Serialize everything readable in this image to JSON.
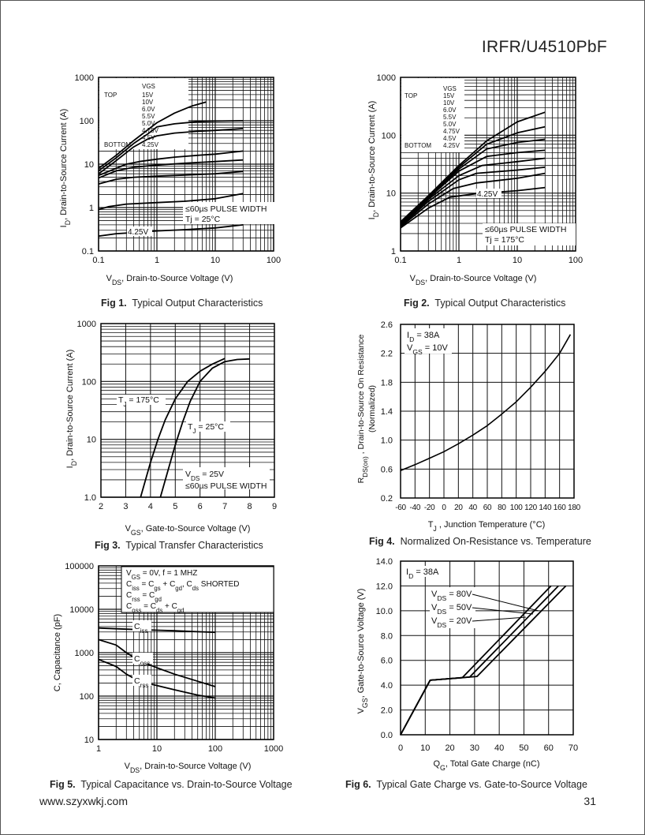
{
  "header": {
    "part_number": "IRFR/U4510PbF"
  },
  "footer": {
    "website": "www.szyxwkj.com",
    "page_number": "31"
  },
  "chart_data": [
    {
      "id": "fig1",
      "type": "line",
      "caption_num": "Fig 1.",
      "caption_text": "Typical Output Characteristics",
      "xscale": "log",
      "yscale": "log",
      "xlim": [
        0.1,
        100
      ],
      "ylim": [
        0.1,
        1000
      ],
      "xticks": [
        0.1,
        1,
        10,
        100
      ],
      "yticks": [
        0.1,
        1,
        10,
        100,
        1000
      ],
      "xtick_labels": [
        "0.1",
        "1",
        "10",
        "100"
      ],
      "ytick_labels": [
        "0.1",
        "1",
        "10",
        "100",
        "1000"
      ],
      "ylabel_main": "I",
      "ylabel_sub": "D",
      "ylabel_rest": ", Drain-to-Source Current (A)",
      "xlabel_main": "V",
      "xlabel_sub": "DS",
      "xlabel_rest": ", Drain-to-Source Voltage (V)",
      "legend": {
        "header": "VGS",
        "top": "TOP",
        "bottom": "BOTTOM",
        "entries": [
          "15V",
          "10V",
          "6.0V",
          "5.5V",
          "5.0V",
          "4.75V",
          "4.5V",
          "4.25V"
        ]
      },
      "annotations": [
        "≤60µs PULSE WIDTH",
        "Tj = 25°C",
        "4.25V"
      ],
      "series": [
        {
          "name": "15V",
          "x": [
            0.1,
            0.2,
            0.4,
            0.7,
            1,
            2,
            4,
            7
          ],
          "y": [
            8,
            16,
            35,
            62,
            90,
            150,
            220,
            270
          ]
        },
        {
          "name": "10V",
          "x": [
            0.1,
            0.2,
            0.4,
            0.7,
            1,
            2,
            5,
            10,
            30
          ],
          "y": [
            7,
            14,
            30,
            50,
            72,
            85,
            95,
            98,
            100
          ]
        },
        {
          "name": "6.0V",
          "x": [
            0.1,
            0.2,
            0.4,
            0.7,
            1,
            2,
            5,
            10,
            30
          ],
          "y": [
            6,
            12,
            25,
            38,
            45,
            52,
            57,
            60,
            66
          ]
        },
        {
          "name": "5.5V",
          "x": [
            0.1,
            0.3,
            0.5,
            1,
            2,
            5,
            10,
            30
          ],
          "y": [
            5.5,
            10,
            11.5,
            13,
            14.5,
            16,
            17,
            20
          ]
        },
        {
          "name": "5.0V",
          "x": [
            0.1,
            0.2,
            0.4,
            1,
            3,
            10,
            30
          ],
          "y": [
            4.8,
            7,
            8.5,
            9.5,
            10.5,
            11.5,
            12.5
          ]
        },
        {
          "name": "4.75V",
          "x": [
            0.1,
            0.2,
            0.4,
            1,
            3,
            10,
            30
          ],
          "y": [
            3.5,
            4.5,
            5,
            5.3,
            5.6,
            6,
            6.8
          ]
        },
        {
          "name": "4.5V",
          "x": [
            0.1,
            0.15,
            0.3,
            1,
            3,
            10,
            30
          ],
          "y": [
            0.9,
            1.05,
            1.2,
            1.3,
            1.4,
            1.6,
            2.1
          ]
        },
        {
          "name": "4.25V",
          "x": [
            0.1,
            0.2,
            0.5,
            1,
            3,
            10,
            30
          ],
          "y": [
            0.22,
            0.25,
            0.27,
            0.29,
            0.31,
            0.34,
            0.4
          ]
        }
      ]
    },
    {
      "id": "fig2",
      "type": "line",
      "caption_num": "Fig 2.",
      "caption_text": "Typical Output Characteristics",
      "xscale": "log",
      "yscale": "log",
      "xlim": [
        0.1,
        100
      ],
      "ylim": [
        1,
        1000
      ],
      "xticks": [
        0.1,
        1,
        10,
        100
      ],
      "yticks": [
        1,
        10,
        100,
        1000
      ],
      "xtick_labels": [
        "0.1",
        "1",
        "10",
        "100"
      ],
      "ytick_labels": [
        "1",
        "10",
        "100",
        "1000"
      ],
      "ylabel_main": "I",
      "ylabel_sub": "D",
      "ylabel_rest": ", Drain-to-Source Current (A)",
      "xlabel_main": "V",
      "xlabel_sub": "DS",
      "xlabel_rest": ", Drain-to-Source Voltage (V)",
      "legend": {
        "header": "VGS",
        "top": "TOP",
        "bottom": "BOTTOM",
        "entries": [
          "15V",
          "10V",
          "6.0V",
          "5.5V",
          "5.0V",
          "4.75V",
          "4.5V",
          "4.25V"
        ]
      },
      "annotations": [
        "≤60µs PULSE WIDTH",
        "Tj = 175°C",
        "4.25V"
      ],
      "series": [
        {
          "name": "15V",
          "x": [
            0.1,
            0.3,
            1,
            3,
            10,
            30
          ],
          "y": [
            3.2,
            9,
            30,
            80,
            170,
            250
          ]
        },
        {
          "name": "10V",
          "x": [
            0.1,
            0.3,
            1,
            3,
            10,
            30
          ],
          "y": [
            3.1,
            8.8,
            28,
            70,
            110,
            140
          ]
        },
        {
          "name": "6.0V",
          "x": [
            0.1,
            0.3,
            1,
            3,
            10,
            30
          ],
          "y": [
            3.0,
            8.5,
            26,
            58,
            75,
            85
          ]
        },
        {
          "name": "5.5V",
          "x": [
            0.1,
            0.3,
            1,
            3,
            10,
            30
          ],
          "y": [
            2.9,
            8.2,
            24,
            43,
            50,
            55
          ]
        },
        {
          "name": "5.0V",
          "x": [
            0.1,
            0.3,
            1,
            2.5,
            10,
            30
          ],
          "y": [
            2.8,
            7.8,
            20,
            30,
            35,
            40
          ]
        },
        {
          "name": "4.75V",
          "x": [
            0.1,
            0.3,
            1,
            2,
            10,
            30
          ],
          "y": [
            2.7,
            7.2,
            17,
            22,
            25,
            28
          ]
        },
        {
          "name": "4.5V",
          "x": [
            0.1,
            0.3,
            0.8,
            2,
            10,
            30
          ],
          "y": [
            2.6,
            6.5,
            12,
            15,
            18,
            22
          ]
        },
        {
          "name": "4.25V",
          "x": [
            0.1,
            0.3,
            0.7,
            2,
            10,
            30
          ],
          "y": [
            2.5,
            5.5,
            8.5,
            9.8,
            11,
            12.5
          ]
        }
      ]
    },
    {
      "id": "fig3",
      "type": "line",
      "caption_num": "Fig 3.",
      "caption_text": "Typical Transfer Characteristics",
      "xscale": "linear",
      "yscale": "log",
      "xlim": [
        2,
        9
      ],
      "ylim": [
        1,
        1000
      ],
      "xticks": [
        2,
        3,
        4,
        5,
        6,
        7,
        8,
        9
      ],
      "yticks": [
        1,
        10,
        100,
        1000
      ],
      "xtick_labels": [
        "2",
        "3",
        "4",
        "5",
        "6",
        "7",
        "8",
        "9"
      ],
      "ytick_labels": [
        "1.0",
        "10",
        "100",
        "1000"
      ],
      "ylabel_main": "I",
      "ylabel_sub": "D",
      "ylabel_rest": ", Drain-to-Source Current  (A)",
      "xlabel_main": "V",
      "xlabel_sub": "GS",
      "xlabel_rest": ", Gate-to-Source Voltage (V)",
      "annotations": [
        "T_J = 175°C",
        "T_J = 25°C",
        "V_DS = 25V",
        "≤60µs PULSE WIDTH"
      ],
      "series": [
        {
          "name": "TJ = 175°C",
          "x": [
            3.6,
            3.8,
            4.0,
            4.3,
            4.6,
            5.0,
            5.5,
            6.0,
            6.5,
            7.0
          ],
          "y": [
            1,
            2,
            4,
            10,
            22,
            50,
            100,
            150,
            200,
            250
          ]
        },
        {
          "name": "TJ = 25°C",
          "x": [
            4.4,
            4.6,
            4.8,
            5.0,
            5.3,
            5.6,
            6.0,
            6.5,
            7.0,
            7.5,
            8.0
          ],
          "y": [
            1,
            2,
            4,
            8,
            20,
            45,
            100,
            170,
            220,
            240,
            245
          ]
        }
      ]
    },
    {
      "id": "fig4",
      "type": "line",
      "caption_num": "Fig 4.",
      "caption_text": "Normalized On-Resistance vs. Temperature",
      "xscale": "linear",
      "yscale": "linear",
      "xlim": [
        -60,
        180
      ],
      "ylim": [
        0.2,
        2.6
      ],
      "xticks": [
        -60,
        -40,
        -20,
        0,
        20,
        40,
        60,
        80,
        100,
        120,
        140,
        160,
        180
      ],
      "yticks": [
        0.2,
        0.6,
        1.0,
        1.4,
        1.8,
        2.2,
        2.6
      ],
      "xtick_labels": [
        "-60",
        "-40",
        "-20",
        "0",
        "20",
        "40",
        "60",
        "80",
        "100",
        "120",
        "140",
        "160",
        "180"
      ],
      "ytick_labels": [
        "0.2",
        "0.6",
        "1.0",
        "1.4",
        "1.8",
        "2.2",
        "2.6"
      ],
      "ylabel_line1": "R",
      "ylabel_sub": "DS(on)",
      "ylabel_rest": " , Drain-to-Source On Resistance",
      "ylabel_line2": "(Normalized)",
      "xlabel_main": "T",
      "xlabel_sub": "J",
      "xlabel_rest": " , Junction Temperature (°C)",
      "annotations": [
        "I_D = 38A",
        "V_GS = 10V"
      ],
      "series": [
        {
          "name": "RDS(on)",
          "x": [
            -60,
            -40,
            -20,
            0,
            20,
            40,
            60,
            80,
            100,
            120,
            140,
            160,
            175
          ],
          "y": [
            0.58,
            0.66,
            0.75,
            0.84,
            0.95,
            1.07,
            1.2,
            1.36,
            1.53,
            1.73,
            1.95,
            2.2,
            2.46
          ]
        }
      ]
    },
    {
      "id": "fig5",
      "type": "line",
      "caption_num": "Fig 5.",
      "caption_text": "Typical Capacitance vs. Drain-to-Source Voltage",
      "xscale": "log",
      "yscale": "log",
      "xlim": [
        1,
        1000
      ],
      "ylim": [
        10,
        100000
      ],
      "xticks": [
        1,
        10,
        100,
        1000
      ],
      "yticks": [
        10,
        100,
        1000,
        10000,
        100000
      ],
      "xtick_labels": [
        "1",
        "10",
        "100",
        "1000"
      ],
      "ytick_labels": [
        "10",
        "100",
        "1000",
        "10000",
        "100000"
      ],
      "ylabel_text": "C, Capacitance (pF)",
      "xlabel_main": "V",
      "xlabel_sub": "DS",
      "xlabel_rest": ", Drain-to-Source Voltage (V)",
      "legend_lines": [
        "V_GS = 0V,      f = 1 MHZ",
        "C_iss = C_gs + C_gd,  C_ds SHORTED",
        "C_rss = C_gd",
        "C_oss = C_ds + C_gd"
      ],
      "annotations": [
        "C_iss",
        "C_oss",
        "C_rss"
      ],
      "series": [
        {
          "name": "Ciss",
          "x": [
            1,
            2,
            5,
            10,
            20,
            50,
            100
          ],
          "y": [
            3700,
            3550,
            3400,
            3300,
            3200,
            3050,
            2950
          ]
        },
        {
          "name": "Coss",
          "x": [
            1,
            2,
            3,
            5,
            10,
            20,
            50,
            100
          ],
          "y": [
            2000,
            1500,
            1000,
            650,
            450,
            320,
            220,
            165
          ]
        },
        {
          "name": "Crss",
          "x": [
            1,
            2,
            3,
            5,
            10,
            20,
            50,
            100
          ],
          "y": [
            700,
            480,
            320,
            220,
            175,
            140,
            105,
            90
          ]
        }
      ]
    },
    {
      "id": "fig6",
      "type": "line",
      "caption_num": "Fig 6.",
      "caption_text": "Typical Gate Charge vs. Gate-to-Source Voltage",
      "xscale": "linear",
      "yscale": "linear",
      "xlim": [
        0,
        70
      ],
      "ylim": [
        0,
        14
      ],
      "xticks": [
        0,
        10,
        20,
        30,
        40,
        50,
        60,
        70
      ],
      "yticks": [
        0,
        2,
        4,
        6,
        8,
        10,
        12,
        14
      ],
      "xtick_labels": [
        "0",
        "10",
        "20",
        "30",
        "40",
        "50",
        "60",
        "70"
      ],
      "ytick_labels": [
        "0.0",
        "2.0",
        "4.0",
        "6.0",
        "8.0",
        "10.0",
        "12.0",
        "14.0"
      ],
      "ylabel_main": "V",
      "ylabel_sub": "GS",
      "ylabel_rest": ", Gate-to-Source Voltage (V)",
      "xlabel_main": "Q",
      "xlabel_sub": "G",
      "xlabel_rest": ",  Total Gate Charge (nC)",
      "annotations": [
        "I_D = 38A",
        "V_DS = 80V",
        "V_DS = 50V",
        "V_DS = 20V"
      ],
      "series": [
        {
          "name": "VDS = 80V",
          "x": [
            0,
            12,
            31,
            67
          ],
          "y": [
            0,
            4.4,
            4.7,
            12
          ]
        },
        {
          "name": "VDS = 50V",
          "x": [
            0,
            12,
            28,
            64
          ],
          "y": [
            0,
            4.4,
            4.65,
            12
          ]
        },
        {
          "name": "VDS = 20V",
          "x": [
            0,
            12,
            25,
            61
          ],
          "y": [
            0,
            4.4,
            4.6,
            12
          ]
        }
      ]
    }
  ]
}
